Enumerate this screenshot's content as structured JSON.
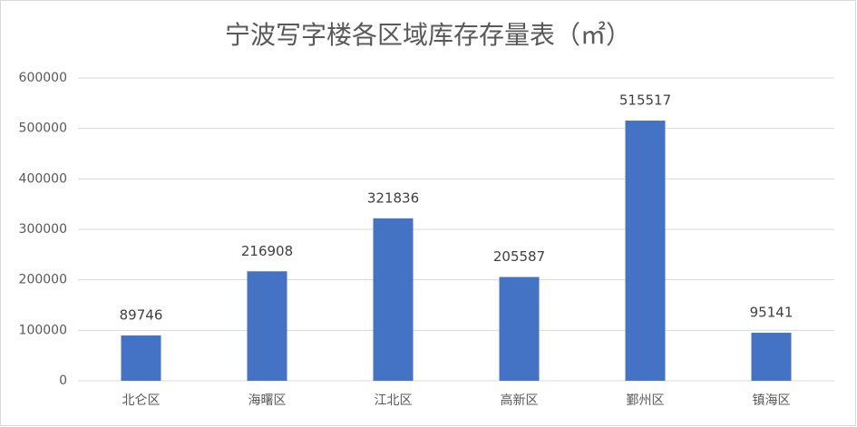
{
  "chart_data": {
    "type": "bar",
    "title": "宁波写字楼各区域库存存量表（㎡）",
    "categories": [
      "北仑区",
      "海曙区",
      "江北区",
      "高新区",
      "鄞州区",
      "镇海区"
    ],
    "values": [
      89746,
      216908,
      321836,
      205587,
      515517,
      95141
    ],
    "color": "#4472c4",
    "ylim": [
      0,
      600000
    ],
    "yticks": [
      0,
      100000,
      200000,
      300000,
      400000,
      500000,
      600000
    ],
    "grid": true
  }
}
